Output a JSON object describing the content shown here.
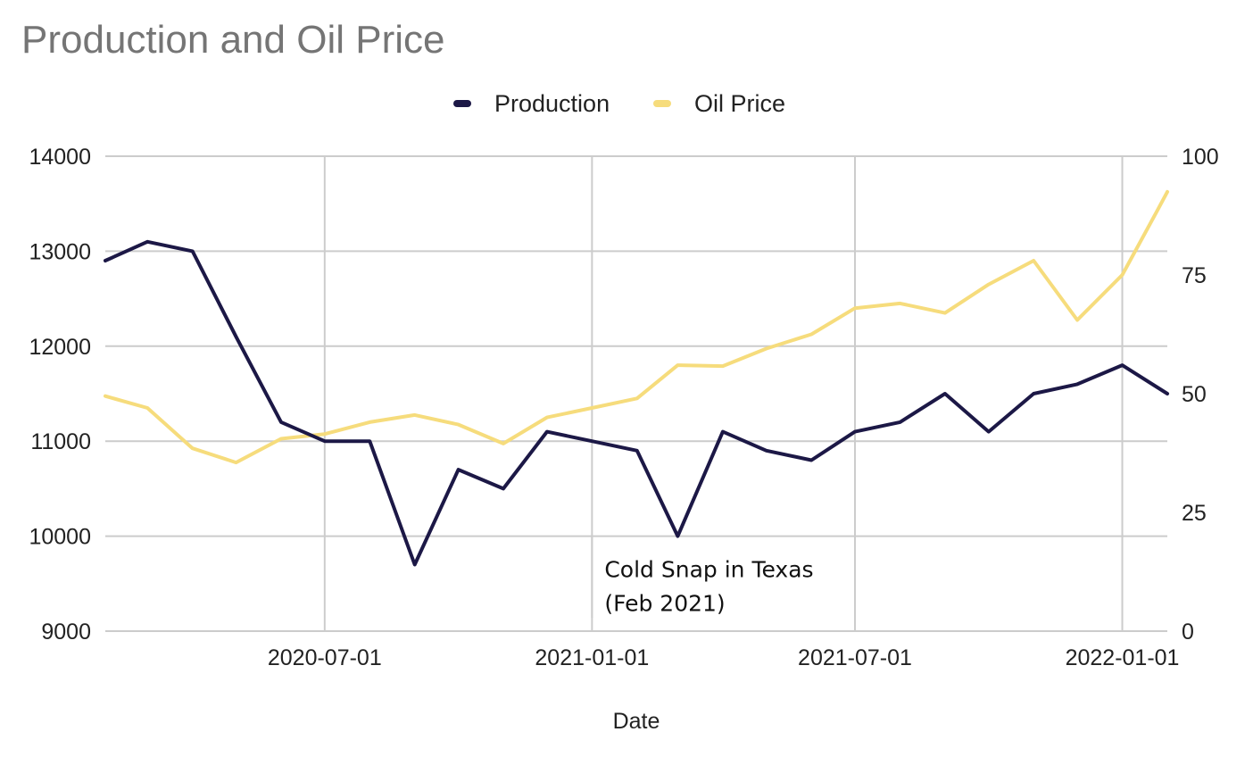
{
  "chart_data": {
    "type": "line",
    "title": "Production and Oil Price",
    "xlabel": "Date",
    "ylabel": "",
    "y2label": "",
    "legend_position": "top-center",
    "grid": true,
    "x": [
      "2020-02-01",
      "2020-03-01",
      "2020-04-01",
      "2020-05-01",
      "2020-06-01",
      "2020-07-01",
      "2020-08-01",
      "2020-09-01",
      "2020-10-01",
      "2020-11-01",
      "2020-12-01",
      "2021-01-01",
      "2021-02-01",
      "2021-03-01",
      "2021-04-01",
      "2021-05-01",
      "2021-06-01",
      "2021-07-01",
      "2021-08-01",
      "2021-09-01",
      "2021-10-01",
      "2021-11-01",
      "2021-12-01",
      "2022-01-01",
      "2022-01-25",
      "2022-02-01"
    ],
    "xlim": [
      "2020-02-01",
      "2022-02-01"
    ],
    "x_ticks": [
      "2020-07-01",
      "2021-01-01",
      "2021-07-01",
      "2022-01-01"
    ],
    "ylim": [
      9000,
      14000
    ],
    "y_ticks": [
      "14000",
      "13000",
      "12000",
      "11000",
      "10000",
      "9000"
    ],
    "y2lim": [
      0,
      100
    ],
    "y2_ticks": [
      "100",
      "75",
      "50",
      "25",
      "0"
    ],
    "series": [
      {
        "name": "Production",
        "axis": "left",
        "color": "#1c1846",
        "values": [
          12900,
          13100,
          13000,
          12100,
          11200,
          11000,
          11000,
          9700,
          10700,
          10500,
          11100,
          11000,
          10900,
          10000,
          11100,
          10900,
          10800,
          11100,
          11200,
          11500,
          11100,
          11500,
          11600,
          11800,
          null,
          11500
        ]
      },
      {
        "name": "Oil Price",
        "axis": "right",
        "color": "#f6dc7c",
        "values": [
          49.5,
          47,
          38.5,
          35.5,
          40.5,
          41.5,
          44,
          45.5,
          43.5,
          39.5,
          45,
          47,
          49,
          56,
          55.8,
          59.5,
          62.5,
          68,
          69,
          67,
          73,
          78,
          65.5,
          75,
          88.5,
          92.5
        ]
      }
    ],
    "annotations": [
      {
        "x": "2021-01-01",
        "y": 10000,
        "lines": [
          "Cold Snap in Texas",
          "(Feb 2021)"
        ]
      }
    ]
  }
}
